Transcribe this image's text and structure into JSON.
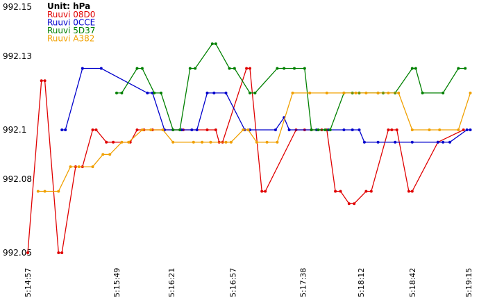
{
  "chart_data": {
    "type": "line",
    "title": "",
    "xlabel": "",
    "ylabel": "",
    "legend": {
      "title": "Unit: hPa",
      "placement": "top-left"
    },
    "ylim": [
      992.05,
      992.15
    ],
    "yticks": [
      992.15,
      992.13,
      992.1,
      992.08,
      992.05
    ],
    "x_range_seconds": [
      0,
      260
    ],
    "xticks": [
      {
        "t": 0,
        "label": "5:14:57"
      },
      {
        "t": 52,
        "label": "5:15:49"
      },
      {
        "t": 84,
        "label": "5:16:21"
      },
      {
        "t": 120,
        "label": "5:16:57"
      },
      {
        "t": 161,
        "label": "5:17:38"
      },
      {
        "t": 195,
        "label": "5:18:12"
      },
      {
        "t": 225,
        "label": "5:18:42"
      },
      {
        "t": 258,
        "label": "5:19:15"
      }
    ],
    "grid": false,
    "series": [
      {
        "name": "Ruuvi 08D0",
        "color": "#e00000",
        "points": [
          [
            0,
            992.05
          ],
          [
            8,
            992.12
          ],
          [
            10,
            992.12
          ],
          [
            18,
            992.05
          ],
          [
            20,
            992.05
          ],
          [
            28,
            992.085
          ],
          [
            32,
            992.085
          ],
          [
            38,
            992.1
          ],
          [
            40,
            992.1
          ],
          [
            46,
            992.095
          ],
          [
            50,
            992.095
          ],
          [
            60,
            992.095
          ],
          [
            64,
            992.1
          ],
          [
            68,
            992.1
          ],
          [
            73,
            992.1
          ],
          [
            80,
            992.1
          ],
          [
            85,
            992.1
          ],
          [
            91,
            992.1
          ],
          [
            105,
            992.1
          ],
          [
            110,
            992.1
          ],
          [
            112,
            992.095
          ],
          [
            114,
            992.095
          ],
          [
            128,
            992.125
          ],
          [
            130,
            992.125
          ],
          [
            137,
            992.075
          ],
          [
            139,
            992.075
          ],
          [
            157,
            992.1
          ],
          [
            162,
            992.1
          ],
          [
            166,
            992.1
          ],
          [
            172,
            992.1
          ],
          [
            175,
            992.1
          ],
          [
            180,
            992.075
          ],
          [
            183,
            992.075
          ],
          [
            188,
            992.07
          ],
          [
            191,
            992.07
          ],
          [
            198,
            992.075
          ],
          [
            201,
            992.075
          ],
          [
            211,
            992.1
          ],
          [
            213,
            992.1
          ],
          [
            216,
            992.1
          ],
          [
            223,
            992.075
          ],
          [
            225,
            992.075
          ],
          [
            240,
            992.095
          ],
          [
            255,
            992.1
          ]
        ]
      },
      {
        "name": "Ruuvi 0CCE",
        "color": "#0000cc",
        "points": [
          [
            20,
            992.1
          ],
          [
            22,
            992.1
          ],
          [
            32,
            992.125
          ],
          [
            43,
            992.125
          ],
          [
            70,
            992.115
          ],
          [
            73,
            992.115
          ],
          [
            80,
            992.1
          ],
          [
            85,
            992.1
          ],
          [
            90,
            992.1
          ],
          [
            96,
            992.1
          ],
          [
            99,
            992.1
          ],
          [
            105,
            992.115
          ],
          [
            109,
            992.115
          ],
          [
            116,
            992.115
          ],
          [
            127,
            992.1
          ],
          [
            130,
            992.1
          ],
          [
            145,
            992.1
          ],
          [
            150,
            992.105
          ],
          [
            153,
            992.1
          ],
          [
            169,
            992.1
          ],
          [
            176,
            992.1
          ],
          [
            185,
            992.1
          ],
          [
            190,
            992.1
          ],
          [
            194,
            992.1
          ],
          [
            197,
            992.095
          ],
          [
            205,
            992.095
          ],
          [
            215,
            992.095
          ],
          [
            225,
            992.095
          ],
          [
            240,
            992.095
          ],
          [
            243,
            992.095
          ],
          [
            247,
            992.095
          ],
          [
            257,
            992.1
          ],
          [
            259,
            992.1
          ]
        ]
      },
      {
        "name": "Ruuvi 5D37",
        "color": "#008000",
        "points": [
          [
            52,
            992.115
          ],
          [
            55,
            992.115
          ],
          [
            64,
            992.125
          ],
          [
            67,
            992.125
          ],
          [
            74,
            992.115
          ],
          [
            78,
            992.115
          ],
          [
            85,
            992.1
          ],
          [
            89,
            992.1
          ],
          [
            95,
            992.125
          ],
          [
            98,
            992.125
          ],
          [
            108,
            992.135
          ],
          [
            110,
            992.135
          ],
          [
            118,
            992.125
          ],
          [
            121,
            992.125
          ],
          [
            130,
            992.115
          ],
          [
            133,
            992.115
          ],
          [
            146,
            992.125
          ],
          [
            150,
            992.125
          ],
          [
            156,
            992.125
          ],
          [
            162,
            992.125
          ],
          [
            166,
            992.1
          ],
          [
            170,
            992.1
          ],
          [
            174,
            992.1
          ],
          [
            177,
            992.1
          ],
          [
            185,
            992.115
          ],
          [
            190,
            992.115
          ],
          [
            194,
            992.115
          ],
          [
            205,
            992.115
          ],
          [
            208,
            992.115
          ],
          [
            215,
            992.115
          ],
          [
            225,
            992.125
          ],
          [
            227,
            992.125
          ],
          [
            231,
            992.115
          ],
          [
            243,
            992.115
          ],
          [
            252,
            992.125
          ],
          [
            256,
            992.125
          ]
        ]
      },
      {
        "name": "Ruuvi A382",
        "color": "#f0a000",
        "points": [
          [
            6,
            992.075
          ],
          [
            10,
            992.075
          ],
          [
            18,
            992.075
          ],
          [
            25,
            992.085
          ],
          [
            30,
            992.085
          ],
          [
            38,
            992.085
          ],
          [
            44,
            992.09
          ],
          [
            48,
            992.09
          ],
          [
            55,
            992.095
          ],
          [
            59,
            992.095
          ],
          [
            67,
            992.1
          ],
          [
            72,
            992.1
          ],
          [
            79,
            992.1
          ],
          [
            85,
            992.095
          ],
          [
            97,
            992.095
          ],
          [
            102,
            992.095
          ],
          [
            107,
            992.095
          ],
          [
            116,
            992.095
          ],
          [
            119,
            992.095
          ],
          [
            126,
            992.1
          ],
          [
            129,
            992.1
          ],
          [
            134,
            992.095
          ],
          [
            140,
            992.095
          ],
          [
            146,
            992.095
          ],
          [
            155,
            992.115
          ],
          [
            165,
            992.115
          ],
          [
            175,
            992.115
          ],
          [
            185,
            992.115
          ],
          [
            192,
            992.115
          ],
          [
            198,
            992.115
          ],
          [
            205,
            992.115
          ],
          [
            211,
            992.115
          ],
          [
            217,
            992.115
          ],
          [
            225,
            992.1
          ],
          [
            235,
            992.1
          ],
          [
            241,
            992.1
          ],
          [
            252,
            992.1
          ],
          [
            259,
            992.115
          ]
        ]
      }
    ]
  }
}
